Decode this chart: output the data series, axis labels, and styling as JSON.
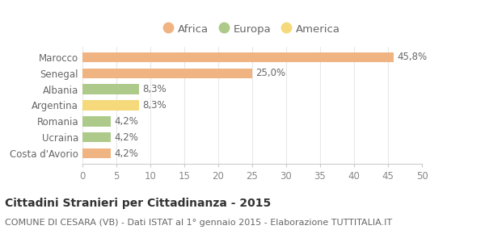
{
  "categories": [
    "Marocco",
    "Senegal",
    "Albania",
    "Argentina",
    "Romania",
    "Ucraina",
    "Costa d'Avorio"
  ],
  "values": [
    45.8,
    25.0,
    8.3,
    8.3,
    4.2,
    4.2,
    4.2
  ],
  "labels": [
    "45,8%",
    "25,0%",
    "8,3%",
    "8,3%",
    "4,2%",
    "4,2%",
    "4,2%"
  ],
  "colors": [
    "#F0B482",
    "#F0B482",
    "#AECA8A",
    "#F5D97A",
    "#AECA8A",
    "#AECA8A",
    "#F0B482"
  ],
  "legend": [
    {
      "label": "Africa",
      "color": "#F0B482"
    },
    {
      "label": "Europa",
      "color": "#AECA8A"
    },
    {
      "label": "America",
      "color": "#F5D97A"
    }
  ],
  "xlim": [
    0,
    50
  ],
  "xticks": [
    0,
    5,
    10,
    15,
    20,
    25,
    30,
    35,
    40,
    45,
    50
  ],
  "title": "Cittadini Stranieri per Cittadinanza - 2015",
  "subtitle": "COMUNE DI CESARA (VB) - Dati ISTAT al 1° gennaio 2015 - Elaborazione TUTTITALIA.IT",
  "background_color": "#FFFFFF",
  "grid_color": "#E8E8E8",
  "bar_height": 0.62,
  "title_fontsize": 10,
  "subtitle_fontsize": 8,
  "label_fontsize": 8.5,
  "tick_fontsize": 8.5,
  "legend_fontsize": 9.5
}
